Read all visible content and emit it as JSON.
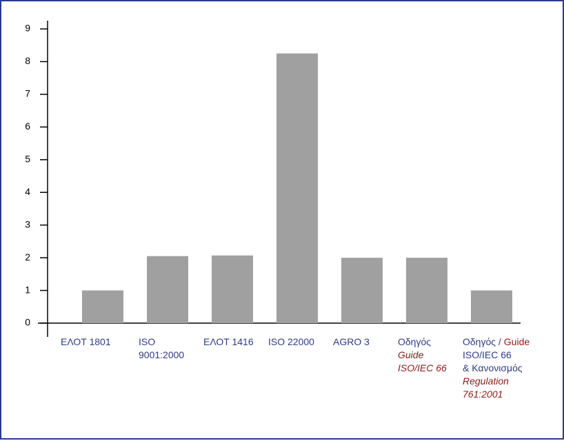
{
  "chart_data": {
    "type": "bar",
    "categories": [
      [
        [
          {
            "text": "ΕΛΟΤ 1801",
            "color": "#2e3a87",
            "italic": false
          }
        ]
      ],
      [
        [
          {
            "text": "ISO",
            "color": "#2e3a87",
            "italic": false
          }
        ],
        [
          {
            "text": "9001:2000",
            "color": "#2e3a87",
            "italic": false
          }
        ]
      ],
      [
        [
          {
            "text": "ΕΛΟΤ 1416",
            "color": "#2e3a87",
            "italic": false
          }
        ]
      ],
      [
        [
          {
            "text": "ISO 22000",
            "color": "#2e3a87",
            "italic": false
          }
        ]
      ],
      [
        [
          {
            "text": "AGRO 3",
            "color": "#2e3a87",
            "italic": false
          }
        ]
      ],
      [
        [
          {
            "text": "Οδηγός",
            "color": "#2e3a87",
            "italic": false
          }
        ],
        [
          {
            "text": "Guide",
            "color": "#8b1a1a",
            "italic": true
          }
        ],
        [
          {
            "text": "ISO/IEC 66",
            "color": "#8b1a1a",
            "italic": true
          }
        ]
      ],
      [
        [
          {
            "text": "Οδηγός /",
            "color": "#2e3a87",
            "italic": false
          },
          {
            "text": "Guide",
            "color": "#8b1a1a",
            "italic": false
          }
        ],
        [
          {
            "text": "ISO/IEC 66",
            "color": "#2e3a87",
            "italic": false
          }
        ],
        [
          {
            "text": "& Κανονισμός",
            "color": "#2e3a87",
            "italic": false
          }
        ],
        [
          {
            "text": "Regulation",
            "color": "#8b1a1a",
            "italic": true
          }
        ],
        [
          {
            "text": "761:2001",
            "color": "#8b1a1a",
            "italic": true
          }
        ]
      ]
    ],
    "values": [
      1,
      2.05,
      2.07,
      8.25,
      2,
      2,
      1
    ],
    "color": "#a0a0a0",
    "ylim": [
      0,
      9
    ],
    "yticks": [
      0,
      1,
      2,
      3,
      4,
      5,
      6,
      7,
      8,
      9
    ],
    "grid": false
  }
}
